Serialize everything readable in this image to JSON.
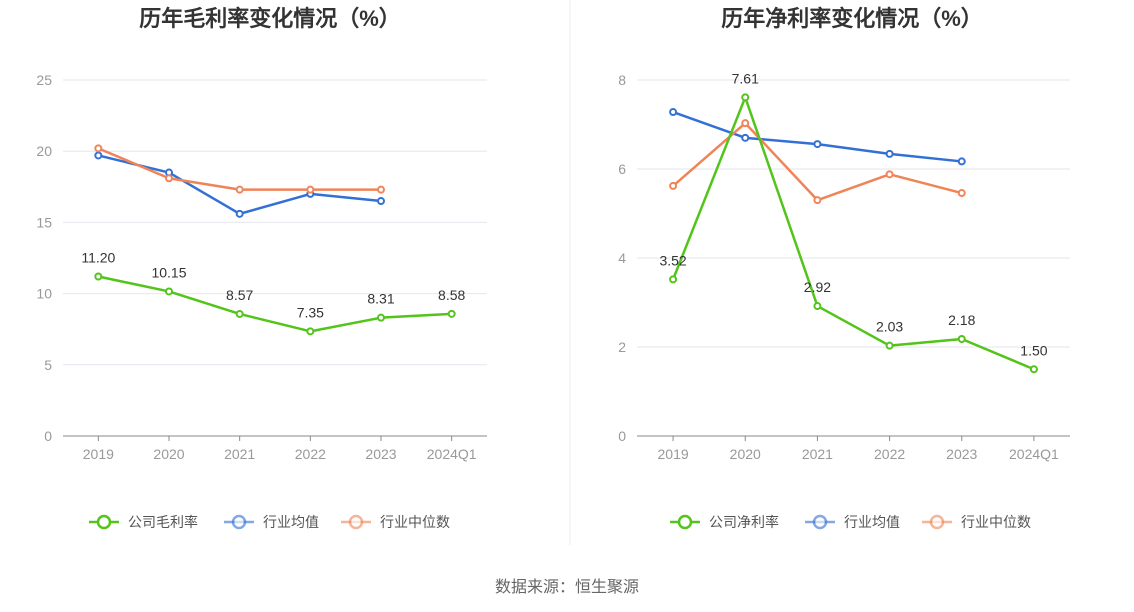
{
  "source": "数据来源：恒生聚源",
  "chart_data": [
    {
      "type": "line",
      "title": "历年毛利率变化情况（%）",
      "categories": [
        "2019",
        "2020",
        "2021",
        "2022",
        "2023",
        "2024Q1"
      ],
      "ylim": [
        0,
        25
      ],
      "yticks": [
        "0",
        "5",
        "10",
        "15",
        "20",
        "25"
      ],
      "grid": true,
      "legend_position": "bottom",
      "series": [
        {
          "name": "公司毛利率",
          "color": "#52c41a",
          "values": [
            11.2,
            10.15,
            8.57,
            7.35,
            8.31,
            8.58
          ],
          "labels": [
            "11.20",
            "10.15",
            "8.57",
            "7.35",
            "8.31",
            "8.58"
          ]
        },
        {
          "name": "行业均值",
          "color": "#3370d6",
          "values": [
            19.7,
            18.5,
            15.6,
            17.0,
            16.5,
            null
          ]
        },
        {
          "name": "行业中位数",
          "color": "#f08457",
          "values": [
            20.2,
            18.1,
            17.3,
            17.3,
            17.3,
            null
          ]
        }
      ]
    },
    {
      "type": "line",
      "title": "历年净利率变化情况（%）",
      "categories": [
        "2019",
        "2020",
        "2021",
        "2022",
        "2023",
        "2024Q1"
      ],
      "ylim": [
        0,
        8
      ],
      "yticks": [
        "0",
        "2",
        "4",
        "6",
        "8"
      ],
      "grid": true,
      "legend_position": "bottom",
      "series": [
        {
          "name": "公司净利率",
          "color": "#52c41a",
          "values": [
            3.52,
            7.61,
            2.92,
            2.03,
            2.18,
            1.5
          ],
          "labels": [
            "3.52",
            "7.61",
            "2.92",
            "2.03",
            "2.18",
            "1.50"
          ]
        },
        {
          "name": "行业均值",
          "color": "#3370d6",
          "values": [
            7.28,
            6.7,
            6.56,
            6.34,
            6.17,
            null
          ]
        },
        {
          "name": "行业中位数",
          "color": "#f08457",
          "values": [
            5.62,
            7.03,
            5.3,
            5.88,
            5.46,
            null
          ]
        }
      ]
    }
  ]
}
